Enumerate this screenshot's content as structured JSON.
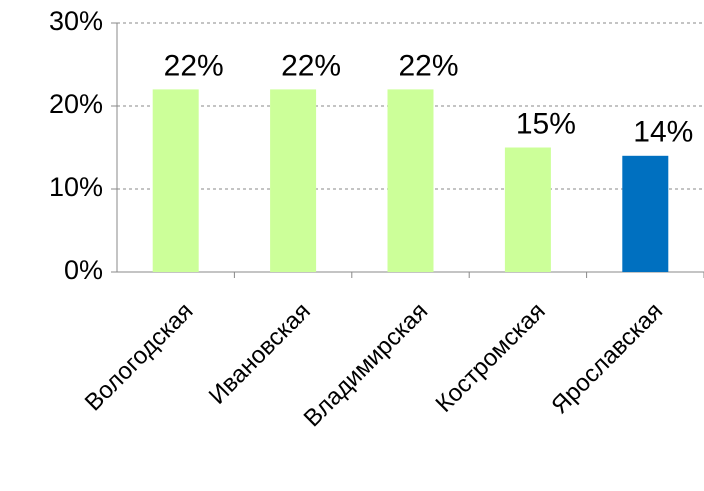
{
  "chart_data": {
    "type": "bar",
    "categories": [
      "Вологодская",
      "Ивановская",
      "Владимирская",
      "Костромская",
      "Ярославская"
    ],
    "values": [
      22,
      22,
      22,
      15,
      14
    ],
    "value_labels": [
      "22%",
      "22%",
      "22%",
      "15%",
      "14%"
    ],
    "colors": [
      "#ccff99",
      "#ccff99",
      "#ccff99",
      "#ccff99",
      "#0070c0"
    ],
    "ylim": [
      0,
      30
    ],
    "yticks": [
      {
        "value": 0,
        "label": "0%"
      },
      {
        "value": 10,
        "label": "10%"
      },
      {
        "value": 20,
        "label": "20%"
      },
      {
        "value": 30,
        "label": "30%"
      }
    ],
    "grid": true
  }
}
